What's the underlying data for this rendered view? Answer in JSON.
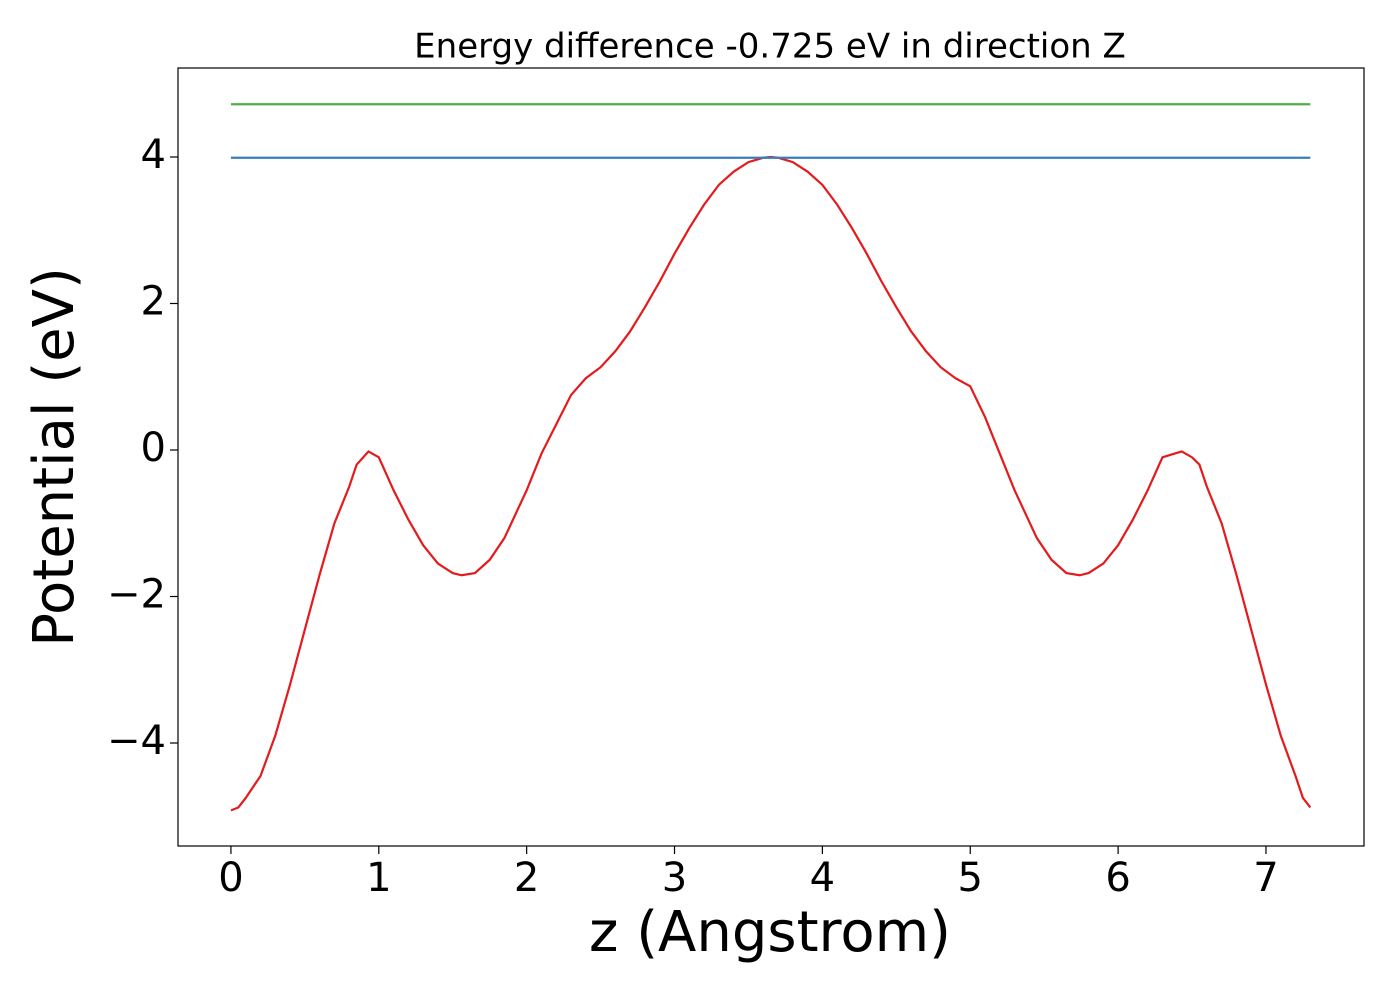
{
  "chart_data": {
    "type": "line",
    "title": "Energy difference -0.725 eV in direction Z",
    "xlabel": "z (Angstrom)",
    "ylabel": "Potential (eV)",
    "xlim": [
      -0.358,
      7.663
    ],
    "ylim": [
      -5.406,
      5.215
    ],
    "xticks": [
      0,
      1,
      2,
      3,
      4,
      5,
      6,
      7
    ],
    "yticks": [
      {
        "value": -4,
        "label": "−4"
      },
      {
        "value": -2,
        "label": "−2"
      },
      0,
      2,
      4
    ],
    "series": [
      {
        "color": "#e41a1c",
        "x": [
          0,
          0.05,
          0.1,
          0.2,
          0.3,
          0.4,
          0.5,
          0.6,
          0.7,
          0.8,
          0.85,
          0.93,
          1.0,
          1.1,
          1.2,
          1.3,
          1.4,
          1.5,
          1.56,
          1.65,
          1.75,
          1.85,
          2.0,
          2.1,
          2.2,
          2.3,
          2.4,
          2.5,
          2.6,
          2.7,
          2.8,
          2.9,
          3.0,
          3.1,
          3.2,
          3.3,
          3.4,
          3.5,
          3.6,
          3.65,
          3.7,
          3.8,
          3.9,
          4.0,
          4.1,
          4.2,
          4.3,
          4.4,
          4.5,
          4.6,
          4.7,
          4.8,
          4.9,
          5.0,
          5.1,
          5.2,
          5.3,
          5.45,
          5.55,
          5.65,
          5.74,
          5.8,
          5.9,
          6.0,
          6.1,
          6.2,
          6.3,
          6.43,
          6.5,
          6.55,
          6.6,
          6.7,
          6.8,
          6.9,
          7.0,
          7.1,
          7.2,
          7.25,
          7.3
        ],
        "values": [
          -4.92,
          -4.88,
          -4.75,
          -4.45,
          -3.9,
          -3.2,
          -2.45,
          -1.7,
          -1.0,
          -0.5,
          -0.2,
          -0.02,
          -0.1,
          -0.55,
          -0.95,
          -1.3,
          -1.55,
          -1.68,
          -1.71,
          -1.68,
          -1.5,
          -1.2,
          -0.55,
          -0.05,
          0.35,
          0.75,
          0.98,
          1.13,
          1.35,
          1.62,
          1.95,
          2.3,
          2.68,
          3.03,
          3.35,
          3.62,
          3.8,
          3.93,
          3.99,
          4.0,
          3.99,
          3.93,
          3.8,
          3.62,
          3.35,
          3.03,
          2.68,
          2.3,
          1.95,
          1.62,
          1.35,
          1.13,
          0.98,
          0.87,
          0.45,
          -0.05,
          -0.55,
          -1.2,
          -1.5,
          -1.68,
          -1.71,
          -1.68,
          -1.55,
          -1.3,
          -0.95,
          -0.55,
          -0.1,
          -0.02,
          -0.1,
          -0.2,
          -0.5,
          -1.0,
          -1.7,
          -2.45,
          -3.2,
          -3.9,
          -4.45,
          -4.75,
          -4.88
        ]
      },
      {
        "color": "#377eb8",
        "x": [
          0,
          7.3
        ],
        "values": [
          3.99,
          3.99
        ]
      },
      {
        "color": "#4daf4a",
        "x": [
          0,
          7.3
        ],
        "values": [
          4.72,
          4.72
        ]
      }
    ]
  }
}
